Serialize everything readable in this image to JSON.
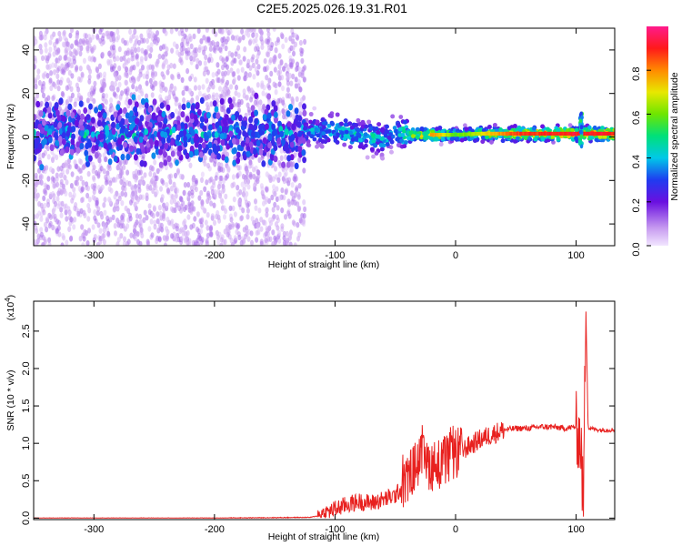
{
  "title": "C2E5.2025.026.19.31.R01",
  "chart_data": [
    {
      "type": "heatmap",
      "xlabel": "Height of straight line (km)",
      "ylabel": "Frequency (Hz)",
      "xlim": [
        -350,
        132
      ],
      "ylim": [
        -50,
        50
      ],
      "xticks": [
        -300,
        -200,
        -100,
        0,
        100
      ],
      "xtick_labels": [
        "-300",
        "-200",
        "-100",
        "0",
        "100"
      ],
      "yticks": [
        -40,
        -20,
        0,
        20,
        40
      ],
      "ytick_labels": [
        "-40",
        "-20",
        "0",
        "20",
        "40"
      ],
      "colorbar": {
        "label": "Normalized spectral amplitude",
        "range": [
          0,
          1
        ],
        "ticks": [
          0,
          0.2,
          0.4,
          0.6,
          0.8
        ],
        "tick_labels": [
          "0.0",
          "0.2",
          "0.4",
          "0.6",
          "0.8"
        ]
      },
      "ridge": [
        {
          "x": -350,
          "y": 2,
          "amplitude": 0.25
        },
        {
          "x": -130,
          "y": 2,
          "amplitude": 0.3
        },
        {
          "x": -120,
          "y": 3,
          "amplitude": 0.45
        },
        {
          "x": -100,
          "y": 3,
          "amplitude": 0.5
        },
        {
          "x": -80,
          "y": 1,
          "amplitude": 0.55
        },
        {
          "x": -60,
          "y": -1,
          "amplitude": 0.5
        },
        {
          "x": -50,
          "y": 3,
          "amplitude": 0.45
        },
        {
          "x": -40,
          "y": 1,
          "amplitude": 0.7
        },
        {
          "x": -20,
          "y": 1,
          "amplitude": 0.85
        },
        {
          "x": 0,
          "y": 1,
          "amplitude": 0.6
        },
        {
          "x": 20,
          "y": 1.5,
          "amplitude": 0.7
        },
        {
          "x": 50,
          "y": 1.5,
          "amplitude": 0.9
        },
        {
          "x": 100,
          "y": 1.5,
          "amplitude": 0.95
        },
        {
          "x": 132,
          "y": 1.5,
          "amplitude": 0.95
        }
      ],
      "grid": false
    },
    {
      "type": "line",
      "xlabel": "Height of straight line (km)",
      "ylabel": "SNR (10 * v/v)",
      "y_multiplier_label": "(x10",
      "y_multiplier_exponent": "4",
      "y_multiplier_close": ")",
      "xlim": [
        -350,
        132
      ],
      "ylim": [
        -0.02,
        2.9
      ],
      "xticks": [
        -300,
        -200,
        -100,
        0,
        100
      ],
      "xtick_labels": [
        "-300",
        "-200",
        "-100",
        "0",
        "100"
      ],
      "yticks": [
        0.0,
        0.5,
        1.0,
        1.5,
        2.0,
        2.5
      ],
      "ytick_labels": [
        "0.0",
        "0.5",
        "1.0",
        "1.5",
        "2.0",
        "2.5"
      ],
      "series": [
        {
          "color": "#e8211f",
          "x": [
            -350,
            -200,
            -120,
            -110,
            -100,
            -90,
            -80,
            -70,
            -60,
            -50,
            -40,
            -30,
            -20,
            -10,
            0,
            10,
            20,
            30,
            40,
            50,
            60,
            70,
            80,
            90,
            100,
            104,
            106,
            108,
            110,
            120,
            132
          ],
          "y": [
            0.0,
            0.0,
            0.01,
            0.05,
            0.12,
            0.18,
            0.22,
            0.2,
            0.25,
            0.3,
            0.5,
            0.8,
            0.7,
            0.75,
            0.85,
            0.95,
            1.05,
            1.12,
            1.18,
            1.2,
            1.2,
            1.22,
            1.22,
            1.2,
            1.22,
            1.0,
            0.05,
            2.9,
            1.2,
            1.18,
            1.18
          ]
        }
      ],
      "grid": false
    }
  ]
}
